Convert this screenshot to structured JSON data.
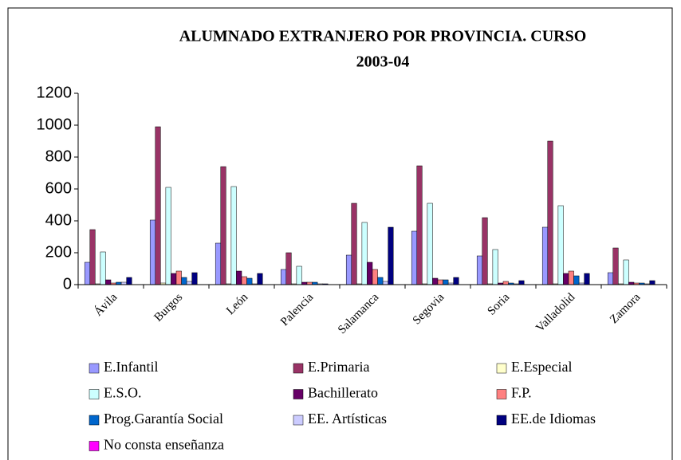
{
  "chart_data": {
    "type": "bar",
    "title": [
      "ALUMNADO EXTRANJERO POR PROVINCIA. CURSO",
      "2003-04"
    ],
    "categories": [
      "Ávila",
      "Burgos",
      "León",
      "Palencia",
      "Salamanca",
      "Segovia",
      "Soria",
      "Valladolid",
      "Zamora"
    ],
    "series": [
      {
        "name": "E.Infantil",
        "color": "#9999ff",
        "values": [
          140,
          405,
          260,
          95,
          185,
          335,
          180,
          360,
          75
        ]
      },
      {
        "name": "E.Primaria",
        "color": "#993366",
        "values": [
          345,
          990,
          740,
          200,
          510,
          745,
          420,
          900,
          230
        ]
      },
      {
        "name": "E.Especial",
        "color": "#ffffcc",
        "values": [
          5,
          10,
          5,
          5,
          5,
          5,
          5,
          5,
          5
        ]
      },
      {
        "name": "E.S.O.",
        "color": "#ccffff",
        "values": [
          205,
          610,
          615,
          115,
          390,
          510,
          220,
          495,
          155
        ]
      },
      {
        "name": "Bachillerato",
        "color": "#660066",
        "values": [
          30,
          70,
          85,
          15,
          140,
          40,
          10,
          70,
          15
        ]
      },
      {
        "name": "F.P.",
        "color": "#ff8080",
        "values": [
          10,
          85,
          50,
          15,
          95,
          30,
          20,
          85,
          10
        ]
      },
      {
        "name": "Prog.Garantía Social",
        "color": "#0066cc",
        "values": [
          15,
          45,
          40,
          15,
          45,
          30,
          10,
          55,
          10
        ]
      },
      {
        "name": "EE. Artísticas",
        "color": "#ccccff",
        "values": [
          15,
          20,
          5,
          5,
          20,
          10,
          5,
          10,
          5
        ]
      },
      {
        "name": "EE.de Idiomas",
        "color": "#000080",
        "values": [
          45,
          75,
          70,
          5,
          360,
          45,
          25,
          70,
          25
        ]
      },
      {
        "name": "No consta enseñanza",
        "color": "#ff00ff",
        "values": [
          0,
          0,
          0,
          0,
          0,
          0,
          0,
          0,
          0
        ]
      }
    ],
    "ylim": [
      0,
      1200
    ],
    "yticks": [
      0,
      200,
      400,
      600,
      800,
      1000,
      1200
    ],
    "grid": false,
    "legend": "bottom"
  }
}
